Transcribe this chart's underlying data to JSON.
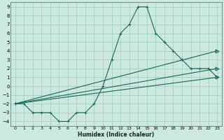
{
  "xlabel": "Humidex (Indice chaleur)",
  "background_color": "#cce8e0",
  "line_color": "#1a6655",
  "grid_color": "#99ccbb",
  "xlim": [
    -0.5,
    23.5
  ],
  "ylim": [
    -4.5,
    9.5
  ],
  "xticks": [
    0,
    1,
    2,
    3,
    4,
    5,
    6,
    7,
    8,
    9,
    10,
    11,
    12,
    13,
    14,
    15,
    16,
    17,
    18,
    19,
    20,
    21,
    22,
    23
  ],
  "yticks": [
    -4,
    -3,
    -2,
    -1,
    0,
    1,
    2,
    3,
    4,
    5,
    6,
    7,
    8,
    9
  ],
  "curve1_x": [
    0,
    1,
    2,
    3,
    4,
    5,
    6,
    7,
    8,
    9,
    10,
    11,
    12,
    13,
    14,
    15,
    16,
    17,
    18,
    19,
    20,
    21,
    22,
    23
  ],
  "curve1_y": [
    -2,
    -2,
    -3,
    -3,
    -3,
    -4,
    -4,
    -3,
    -3,
    -2,
    0,
    3,
    6,
    7,
    9,
    9,
    6,
    5,
    4,
    3,
    2,
    2,
    2,
    1
  ],
  "line1_x": [
    0,
    23
  ],
  "line1_y": [
    -2,
    1
  ],
  "line2_x": [
    0,
    23
  ],
  "line2_y": [
    -2,
    2
  ],
  "line3_x": [
    0,
    23
  ],
  "line3_y": [
    -2,
    4
  ],
  "tri1_y": 1,
  "tri2_y": 2,
  "tri3_y": 4,
  "tri_x": 23
}
